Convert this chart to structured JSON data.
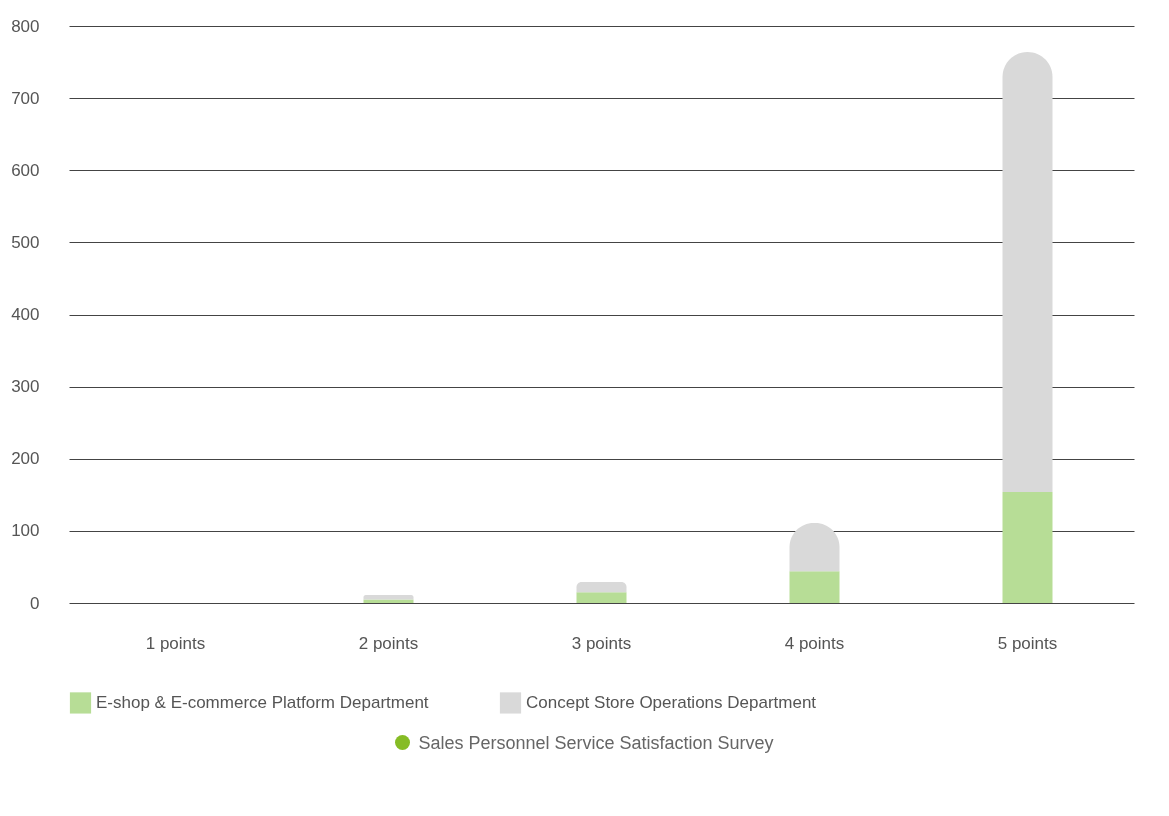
{
  "chart_data": {
    "type": "bar",
    "stacked": true,
    "categories": [
      "1 points",
      "2 points",
      "3 points",
      "4 points",
      "5 points"
    ],
    "series": [
      {
        "name": "E-shop & E-commerce Platform Department",
        "color": "#b7dd96",
        "values": [
          0,
          5,
          15,
          44,
          154
        ]
      },
      {
        "name": "Concept Store Operations Department",
        "color": "#d9d9d9",
        "values": [
          0,
          6,
          14,
          67,
          610
        ]
      }
    ],
    "ylim": [
      0,
      800
    ],
    "yticks": [
      0,
      100,
      200,
      300,
      400,
      500,
      600,
      700,
      800
    ],
    "grid": "y",
    "legend": "bottom",
    "annotations": [
      "Sales Personnel Service Satisfaction Survey"
    ]
  }
}
